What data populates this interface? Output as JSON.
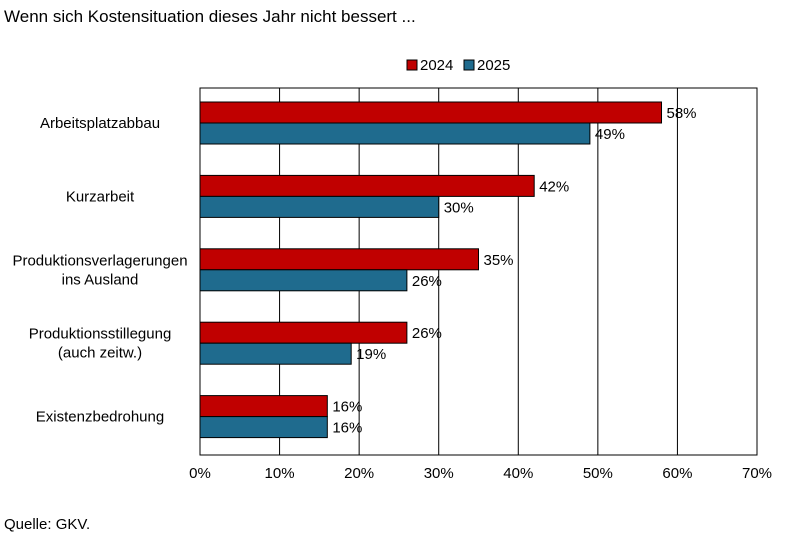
{
  "title": "Wenn sich Kostensituation dieses Jahr nicht bessert ...",
  "source": "Quelle: GKV.",
  "colors": {
    "series_2024": "#c00000",
    "series_2025": "#1f6b8e",
    "grid": "#000000"
  },
  "chart_data": {
    "type": "bar",
    "orientation": "horizontal",
    "categories": [
      [
        "Arbeitsplatzabbau"
      ],
      [
        "Kurzarbeit"
      ],
      [
        "Produktionsverlagerungen",
        "ins Ausland"
      ],
      [
        "Produktionsstillegung",
        "(auch zeitw.)"
      ],
      [
        "Existenzbedrohung"
      ]
    ],
    "series": [
      {
        "name": "2024",
        "values": [
          58,
          42,
          35,
          26,
          16
        ]
      },
      {
        "name": "2025",
        "values": [
          49,
          30,
          26,
          19,
          16
        ]
      }
    ],
    "xlim": [
      0,
      70
    ],
    "xticks": [
      0,
      10,
      20,
      30,
      40,
      50,
      60,
      70
    ],
    "tick_suffix": "%",
    "grid": "vertical",
    "legend": "top"
  }
}
